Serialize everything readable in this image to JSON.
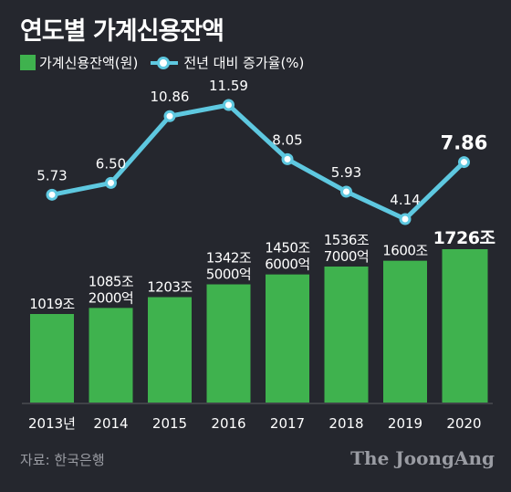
{
  "title": "연도별 가계신용잔액",
  "legend": {
    "bar_label": "가계신용잔액(원)",
    "line_label": "전년 대비 증가율(%)"
  },
  "colors": {
    "background": "#25272e",
    "bar": "#3fb24e",
    "line": "#5ec8e0",
    "text": "#ffffff",
    "muted": "#9a9ca3"
  },
  "chart_data": {
    "type": "bar",
    "categories": [
      "2013년",
      "2014",
      "2015",
      "2016",
      "2017",
      "2018",
      "2019",
      "2020"
    ],
    "series": [
      {
        "name": "가계신용잔액(원)",
        "type": "bar",
        "values": [
          1019,
          1085.2,
          1203,
          1342.5,
          1450.6,
          1536.7,
          1600,
          1726
        ],
        "labels": [
          [
            "1019조"
          ],
          [
            "1085조",
            "2000억"
          ],
          [
            "1203조"
          ],
          [
            "1342조",
            "5000억"
          ],
          [
            "1450조",
            "6000억"
          ],
          [
            "1536조",
            "7000억"
          ],
          [
            "1600조"
          ],
          [
            "1726조"
          ]
        ]
      },
      {
        "name": "전년 대비 증가율(%)",
        "type": "line",
        "values": [
          5.73,
          6.5,
          10.86,
          11.59,
          8.05,
          5.93,
          4.14,
          7.86
        ],
        "labels": [
          "5.73",
          "6.50",
          "10.86",
          "11.59",
          "8.05",
          "5.93",
          "4.14",
          "7.86"
        ]
      }
    ],
    "highlight_index": 7
  },
  "source": "자료: 한국은행",
  "brand": "The JoongAng"
}
